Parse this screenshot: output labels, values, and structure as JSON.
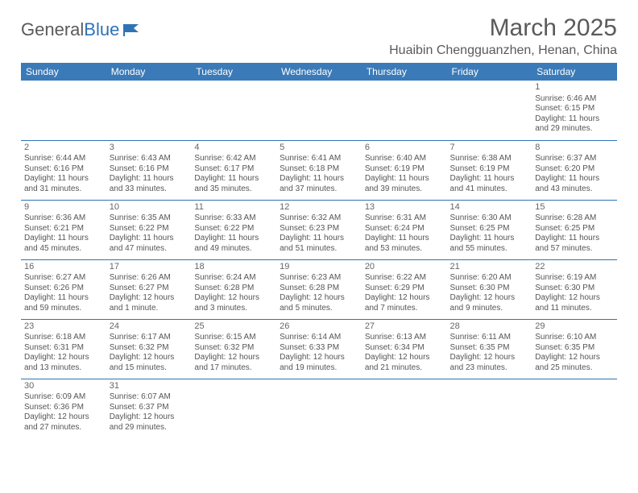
{
  "logo": {
    "text1": "General",
    "text2": "Blue"
  },
  "title": "March 2025",
  "location": "Huaibin Chengguanzhen, Henan, China",
  "colors": {
    "header_bg": "#3a7ab8",
    "header_text": "#ffffff",
    "border": "#2e74b5",
    "body_text": "#555555",
    "title_text": "#5a5a5a",
    "logo_accent": "#2e74b5",
    "page_bg": "#ffffff"
  },
  "weekdays": [
    "Sunday",
    "Monday",
    "Tuesday",
    "Wednesday",
    "Thursday",
    "Friday",
    "Saturday"
  ],
  "weeks": [
    [
      null,
      null,
      null,
      null,
      null,
      null,
      {
        "d": "1",
        "sr": "Sunrise: 6:46 AM",
        "ss": "Sunset: 6:15 PM",
        "dl": "Daylight: 11 hours and 29 minutes."
      }
    ],
    [
      {
        "d": "2",
        "sr": "Sunrise: 6:44 AM",
        "ss": "Sunset: 6:16 PM",
        "dl": "Daylight: 11 hours and 31 minutes."
      },
      {
        "d": "3",
        "sr": "Sunrise: 6:43 AM",
        "ss": "Sunset: 6:16 PM",
        "dl": "Daylight: 11 hours and 33 minutes."
      },
      {
        "d": "4",
        "sr": "Sunrise: 6:42 AM",
        "ss": "Sunset: 6:17 PM",
        "dl": "Daylight: 11 hours and 35 minutes."
      },
      {
        "d": "5",
        "sr": "Sunrise: 6:41 AM",
        "ss": "Sunset: 6:18 PM",
        "dl": "Daylight: 11 hours and 37 minutes."
      },
      {
        "d": "6",
        "sr": "Sunrise: 6:40 AM",
        "ss": "Sunset: 6:19 PM",
        "dl": "Daylight: 11 hours and 39 minutes."
      },
      {
        "d": "7",
        "sr": "Sunrise: 6:38 AM",
        "ss": "Sunset: 6:19 PM",
        "dl": "Daylight: 11 hours and 41 minutes."
      },
      {
        "d": "8",
        "sr": "Sunrise: 6:37 AM",
        "ss": "Sunset: 6:20 PM",
        "dl": "Daylight: 11 hours and 43 minutes."
      }
    ],
    [
      {
        "d": "9",
        "sr": "Sunrise: 6:36 AM",
        "ss": "Sunset: 6:21 PM",
        "dl": "Daylight: 11 hours and 45 minutes."
      },
      {
        "d": "10",
        "sr": "Sunrise: 6:35 AM",
        "ss": "Sunset: 6:22 PM",
        "dl": "Daylight: 11 hours and 47 minutes."
      },
      {
        "d": "11",
        "sr": "Sunrise: 6:33 AM",
        "ss": "Sunset: 6:22 PM",
        "dl": "Daylight: 11 hours and 49 minutes."
      },
      {
        "d": "12",
        "sr": "Sunrise: 6:32 AM",
        "ss": "Sunset: 6:23 PM",
        "dl": "Daylight: 11 hours and 51 minutes."
      },
      {
        "d": "13",
        "sr": "Sunrise: 6:31 AM",
        "ss": "Sunset: 6:24 PM",
        "dl": "Daylight: 11 hours and 53 minutes."
      },
      {
        "d": "14",
        "sr": "Sunrise: 6:30 AM",
        "ss": "Sunset: 6:25 PM",
        "dl": "Daylight: 11 hours and 55 minutes."
      },
      {
        "d": "15",
        "sr": "Sunrise: 6:28 AM",
        "ss": "Sunset: 6:25 PM",
        "dl": "Daylight: 11 hours and 57 minutes."
      }
    ],
    [
      {
        "d": "16",
        "sr": "Sunrise: 6:27 AM",
        "ss": "Sunset: 6:26 PM",
        "dl": "Daylight: 11 hours and 59 minutes."
      },
      {
        "d": "17",
        "sr": "Sunrise: 6:26 AM",
        "ss": "Sunset: 6:27 PM",
        "dl": "Daylight: 12 hours and 1 minute."
      },
      {
        "d": "18",
        "sr": "Sunrise: 6:24 AM",
        "ss": "Sunset: 6:28 PM",
        "dl": "Daylight: 12 hours and 3 minutes."
      },
      {
        "d": "19",
        "sr": "Sunrise: 6:23 AM",
        "ss": "Sunset: 6:28 PM",
        "dl": "Daylight: 12 hours and 5 minutes."
      },
      {
        "d": "20",
        "sr": "Sunrise: 6:22 AM",
        "ss": "Sunset: 6:29 PM",
        "dl": "Daylight: 12 hours and 7 minutes."
      },
      {
        "d": "21",
        "sr": "Sunrise: 6:20 AM",
        "ss": "Sunset: 6:30 PM",
        "dl": "Daylight: 12 hours and 9 minutes."
      },
      {
        "d": "22",
        "sr": "Sunrise: 6:19 AM",
        "ss": "Sunset: 6:30 PM",
        "dl": "Daylight: 12 hours and 11 minutes."
      }
    ],
    [
      {
        "d": "23",
        "sr": "Sunrise: 6:18 AM",
        "ss": "Sunset: 6:31 PM",
        "dl": "Daylight: 12 hours and 13 minutes."
      },
      {
        "d": "24",
        "sr": "Sunrise: 6:17 AM",
        "ss": "Sunset: 6:32 PM",
        "dl": "Daylight: 12 hours and 15 minutes."
      },
      {
        "d": "25",
        "sr": "Sunrise: 6:15 AM",
        "ss": "Sunset: 6:32 PM",
        "dl": "Daylight: 12 hours and 17 minutes."
      },
      {
        "d": "26",
        "sr": "Sunrise: 6:14 AM",
        "ss": "Sunset: 6:33 PM",
        "dl": "Daylight: 12 hours and 19 minutes."
      },
      {
        "d": "27",
        "sr": "Sunrise: 6:13 AM",
        "ss": "Sunset: 6:34 PM",
        "dl": "Daylight: 12 hours and 21 minutes."
      },
      {
        "d": "28",
        "sr": "Sunrise: 6:11 AM",
        "ss": "Sunset: 6:35 PM",
        "dl": "Daylight: 12 hours and 23 minutes."
      },
      {
        "d": "29",
        "sr": "Sunrise: 6:10 AM",
        "ss": "Sunset: 6:35 PM",
        "dl": "Daylight: 12 hours and 25 minutes."
      }
    ],
    [
      {
        "d": "30",
        "sr": "Sunrise: 6:09 AM",
        "ss": "Sunset: 6:36 PM",
        "dl": "Daylight: 12 hours and 27 minutes."
      },
      {
        "d": "31",
        "sr": "Sunrise: 6:07 AM",
        "ss": "Sunset: 6:37 PM",
        "dl": "Daylight: 12 hours and 29 minutes."
      },
      null,
      null,
      null,
      null,
      null
    ]
  ]
}
